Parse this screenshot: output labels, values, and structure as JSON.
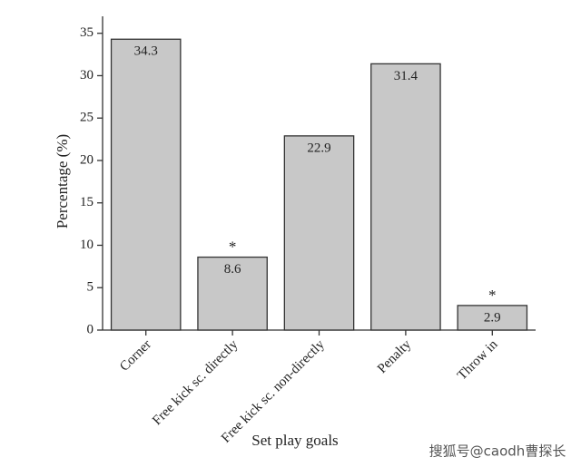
{
  "chart_data": {
    "type": "bar",
    "x_label": "Set play goals",
    "y_label": "Percentage (%)",
    "categories": [
      "Corner",
      "Free kick sc. directly",
      "Free kick sc. non-directly",
      "Penalty",
      "Throw in"
    ],
    "values": [
      34.3,
      8.6,
      22.9,
      31.4,
      2.9
    ],
    "color": "#c8c8c8",
    "ylim": [
      0,
      37
    ],
    "yticks": [
      0,
      5,
      10,
      15,
      20,
      25,
      30,
      35
    ],
    "grid": false,
    "annotations": [
      {
        "category": "Free kick sc. directly",
        "text": "*"
      },
      {
        "category": "Throw in",
        "text": "*"
      }
    ]
  },
  "watermark": "搜狐号@caodh曹探长"
}
